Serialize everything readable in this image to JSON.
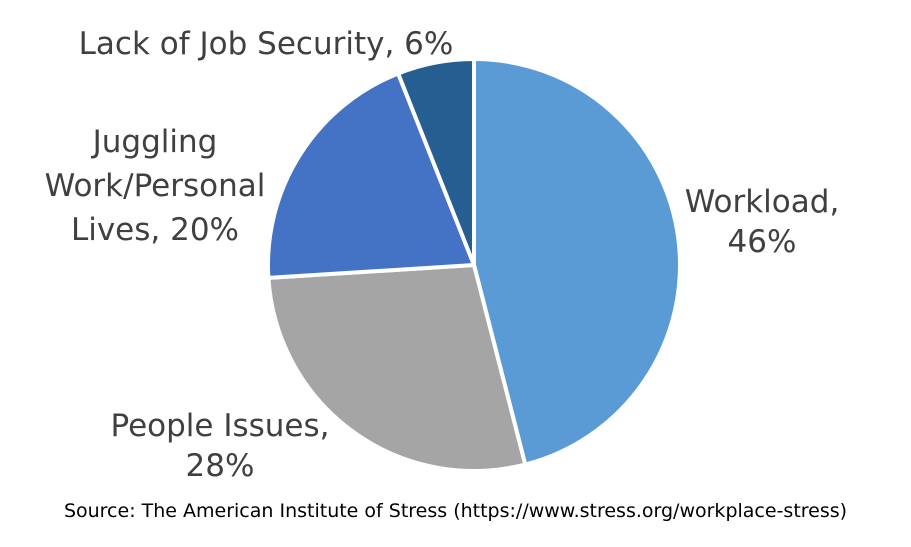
{
  "chart_data": {
    "type": "pie",
    "title": "",
    "slices": [
      {
        "label": "Workload",
        "value": 46,
        "color": "#5B9BD5",
        "label_lines": [
          "Workload,",
          "46%"
        ]
      },
      {
        "label": "People Issues",
        "value": 28,
        "color": "#A5A5A5",
        "label_lines": [
          "People Issues,",
          "28%"
        ]
      },
      {
        "label": "Juggling Work/Personal Lives",
        "value": 20,
        "color": "#4472C4",
        "label_lines": [
          "Juggling",
          "Work/Personal",
          "Lives, 20%"
        ]
      },
      {
        "label": "Lack of Job Security",
        "value": 6,
        "color": "#255E91",
        "label_lines": [
          "Lack of Job Security, 6%"
        ]
      }
    ],
    "start_angle_deg": 0,
    "direction": "clockwise",
    "legend": "none"
  },
  "source": "Source:  The American Institute of Stress (https://www.stress.org/workplace-stress)"
}
